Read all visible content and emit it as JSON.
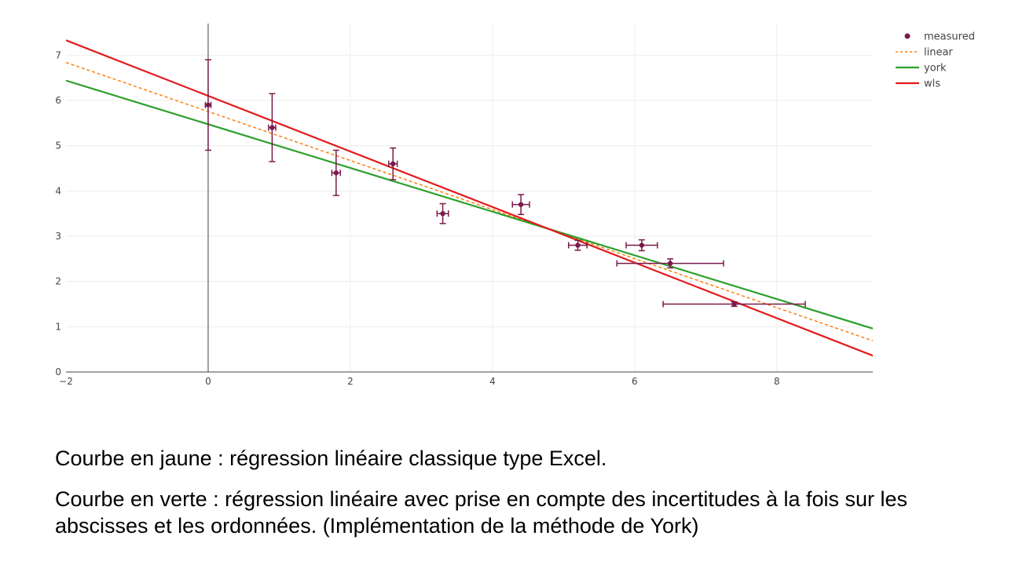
{
  "chart_data": {
    "type": "scatter",
    "xlim": [
      -2,
      9.35
    ],
    "ylim": [
      0,
      7.7
    ],
    "x_ticks": [
      -2,
      0,
      2,
      4,
      6,
      8
    ],
    "y_ticks": [
      0,
      1,
      2,
      3,
      4,
      5,
      6,
      7
    ],
    "grid": true,
    "legend_position": "top-right",
    "measured": {
      "name": "measured",
      "color": "#7a1a4a",
      "points": [
        {
          "x": 0.0,
          "y": 5.9,
          "ex": 0.04,
          "ey": 1.0
        },
        {
          "x": 0.9,
          "y": 5.4,
          "ex": 0.05,
          "ey": 0.75
        },
        {
          "x": 1.8,
          "y": 4.4,
          "ex": 0.06,
          "ey": 0.5
        },
        {
          "x": 2.6,
          "y": 4.6,
          "ex": 0.06,
          "ey": 0.35
        },
        {
          "x": 3.3,
          "y": 3.5,
          "ex": 0.08,
          "ey": 0.22
        },
        {
          "x": 4.4,
          "y": 3.7,
          "ex": 0.12,
          "ey": 0.22
        },
        {
          "x": 5.2,
          "y": 2.8,
          "ex": 0.13,
          "ey": 0.11
        },
        {
          "x": 6.1,
          "y": 2.8,
          "ex": 0.22,
          "ey": 0.12
        },
        {
          "x": 6.5,
          "y": 2.4,
          "ex": 0.75,
          "ey": 0.1
        },
        {
          "x": 7.4,
          "y": 1.5,
          "ex": 1.0,
          "ey": 0.05
        }
      ]
    },
    "lines": [
      {
        "name": "linear",
        "color": "#ff7f0e",
        "dash": true,
        "y_at_xmin": 6.84,
        "y_at_xmax": 0.69
      },
      {
        "name": "york",
        "color": "#2ca02c",
        "dash": false,
        "y_at_xmin": 6.44,
        "y_at_xmax": 0.96
      },
      {
        "name": "wls",
        "color": "#e31a1c",
        "dash": false,
        "y_at_xmin": 7.33,
        "y_at_xmax": 0.36
      }
    ]
  },
  "captions": {
    "line1": "Courbe en jaune : régression linéaire classique type Excel.",
    "line2": "Courbe en verte : régression linéaire avec prise en compte des incertitudes à la fois sur les abscisses et les ordonnées. (Implémentation de la méthode de York)"
  }
}
